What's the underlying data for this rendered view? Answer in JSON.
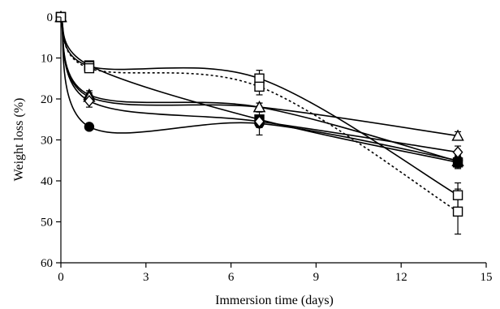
{
  "chart_data": {
    "type": "line",
    "title": "",
    "xlabel": "Immersion time (days)",
    "ylabel": "Weight loss (%)",
    "xlim": [
      0,
      15
    ],
    "ylim": [
      0,
      60
    ],
    "y_inverted": true,
    "x_ticks": [
      0,
      3,
      6,
      9,
      12,
      15
    ],
    "y_ticks": [
      0,
      10,
      20,
      30,
      40,
      50,
      60
    ],
    "grid": false,
    "legend": "none",
    "x": [
      0,
      1,
      7,
      14
    ],
    "series": [
      {
        "marker": "filled-circle",
        "line": "solid",
        "values": [
          0,
          26.8,
          26.0,
          35.0
        ],
        "error": [
          0,
          0.8,
          2.8,
          2.0
        ]
      },
      {
        "marker": "filled-square",
        "line": "solid",
        "values": [
          0,
          11.8,
          25.0,
          35.5
        ],
        "error": [
          0,
          0.5,
          1.0,
          1.5
        ]
      },
      {
        "marker": "filled-triangle",
        "line": "solid",
        "values": [
          0,
          19.0,
          22.0,
          35.2
        ],
        "error": [
          0,
          1.0,
          1.0,
          1.5
        ]
      },
      {
        "marker": "open-triangle",
        "line": "solid",
        "values": [
          0,
          19.5,
          22.0,
          29.0
        ],
        "error": [
          0,
          1.0,
          1.0,
          1.0
        ]
      },
      {
        "marker": "open-diamond",
        "line": "solid",
        "values": [
          0,
          20.5,
          25.5,
          33.0
        ],
        "error": [
          0,
          1.5,
          1.5,
          1.5
        ]
      },
      {
        "marker": "open-square",
        "line": "solid",
        "values": [
          0,
          12.0,
          15.0,
          43.5
        ],
        "error": [
          0,
          0.8,
          2.0,
          3.0
        ]
      },
      {
        "marker": "open-square",
        "line": "dashed",
        "values": [
          0,
          12.5,
          17.0,
          47.5
        ],
        "error": [
          0,
          0.8,
          2.0,
          5.5
        ]
      }
    ]
  }
}
